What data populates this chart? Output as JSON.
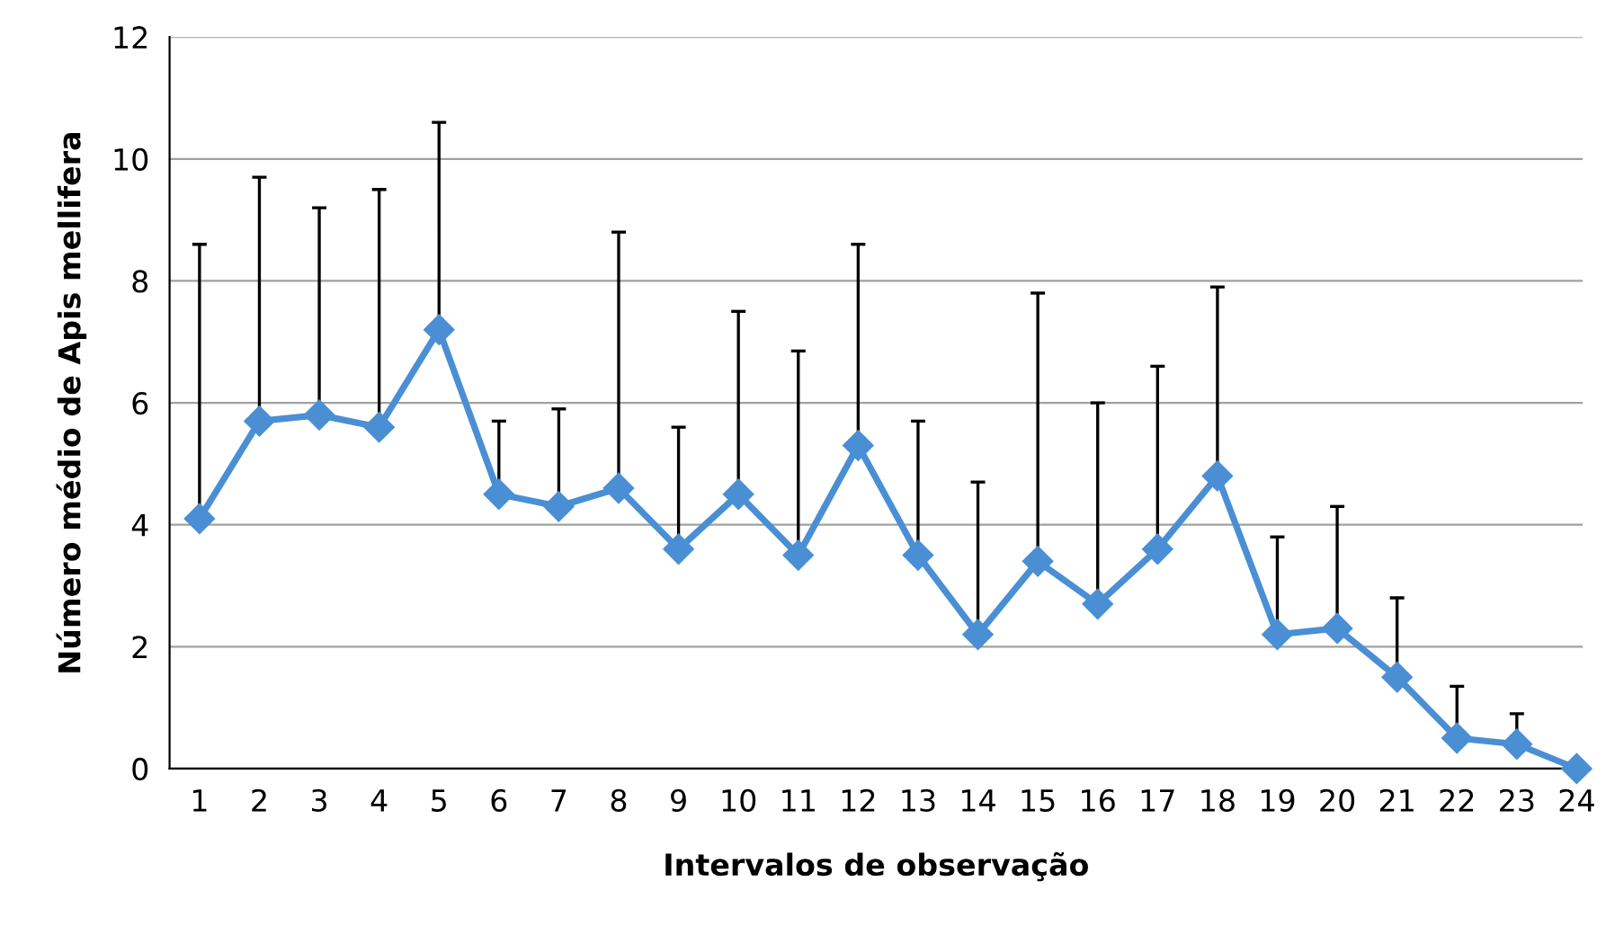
{
  "chart_data": {
    "type": "line",
    "xlabel": "Intervalos de observação",
    "ylabel": "Número médio de Apis mellifera",
    "categories": [
      "1",
      "2",
      "3",
      "4",
      "5",
      "6",
      "7",
      "8",
      "9",
      "10",
      "11",
      "12",
      "13",
      "14",
      "15",
      "16",
      "17",
      "18",
      "19",
      "20",
      "21",
      "22",
      "23",
      "24"
    ],
    "series": [
      {
        "color": "#4a8fd4",
        "values": [
          4.1,
          5.7,
          5.8,
          5.6,
          7.2,
          4.5,
          4.3,
          4.6,
          3.6,
          4.5,
          3.5,
          5.3,
          3.5,
          2.2,
          3.4,
          2.7,
          3.6,
          4.8,
          2.2,
          2.3,
          1.5,
          0.5,
          0.4,
          0
        ],
        "errors": [
          [
            4.1,
            8.6
          ],
          [
            5.7,
            9.7
          ],
          [
            5.8,
            9.2
          ],
          [
            5.6,
            9.5
          ],
          [
            7.2,
            10.6
          ],
          [
            4.5,
            5.7
          ],
          [
            4.3,
            5.9
          ],
          [
            4.6,
            8.8
          ],
          [
            3.6,
            5.6
          ],
          [
            4.5,
            7.5
          ],
          [
            3.5,
            6.85
          ],
          [
            5.3,
            8.6
          ],
          [
            3.5,
            5.7
          ],
          [
            2.2,
            4.7
          ],
          [
            3.4,
            7.8
          ],
          [
            2.7,
            6.0
          ],
          [
            3.6,
            6.6
          ],
          [
            4.8,
            7.9
          ],
          [
            2.2,
            3.8
          ],
          [
            2.3,
            4.3
          ],
          [
            1.5,
            2.8
          ],
          [
            0.5,
            1.35
          ],
          [
            0.4,
            0.9
          ],
          null
        ]
      }
    ],
    "ylim": [
      0,
      12
    ],
    "yticks": [
      0,
      2,
      4,
      6,
      8,
      10,
      12
    ],
    "grid": "y",
    "marker": "diamond",
    "line_style": "solid"
  }
}
